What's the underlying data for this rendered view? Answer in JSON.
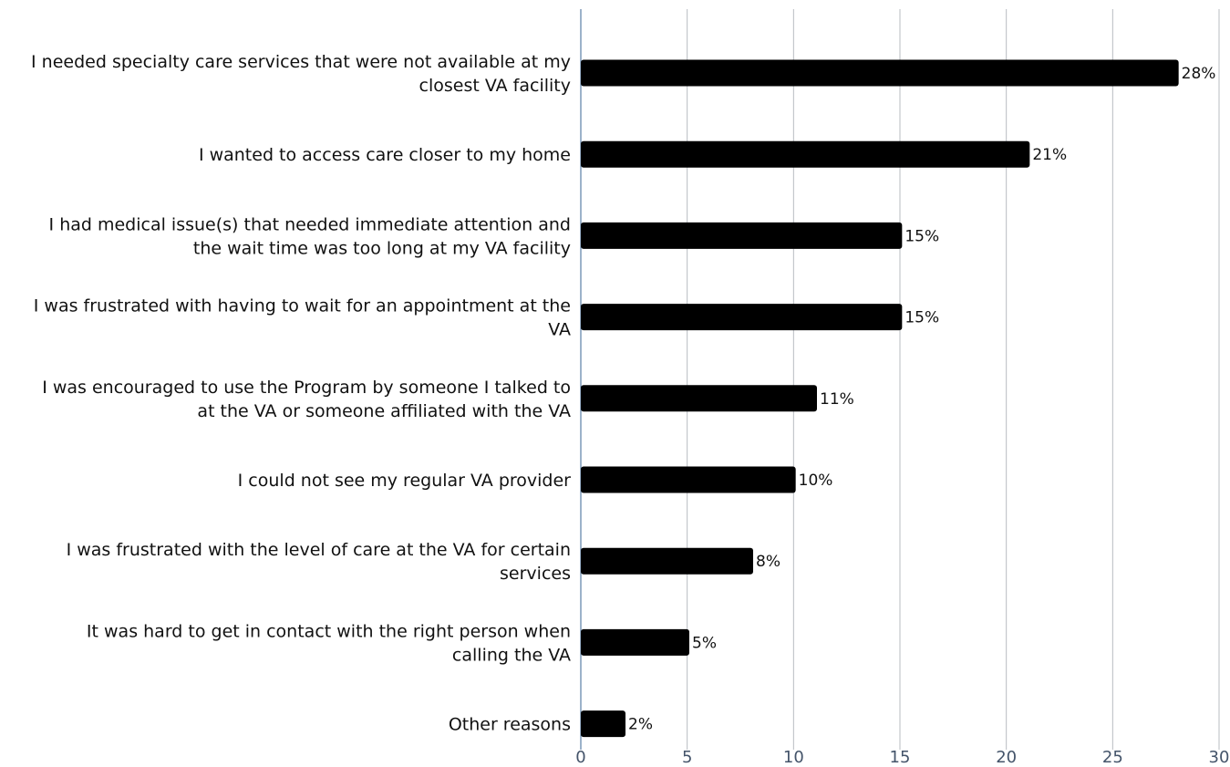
{
  "chart_data": {
    "type": "bar",
    "orientation": "horizontal",
    "categories": [
      [
        "I needed specialty care services that were not available at my",
        "closest VA facility"
      ],
      [
        "I wanted to access care closer to my home"
      ],
      [
        "I had medical issue(s) that needed immediate attention and",
        "the wait time was too long at my VA facility"
      ],
      [
        "I was frustrated with having to wait for an appointment at the",
        "VA"
      ],
      [
        "I was encouraged to use the Program by someone I talked to",
        "at the VA or someone affiliated with the VA"
      ],
      [
        "I could not see my regular VA provider"
      ],
      [
        "I was frustrated with the level of care at the VA for certain",
        "services"
      ],
      [
        "It was hard to get in contact with the right person when",
        "calling the VA"
      ],
      [
        "Other reasons"
      ]
    ],
    "values": [
      28.1,
      21.1,
      15.1,
      15.1,
      11.1,
      10.1,
      8.1,
      5.1,
      2.1
    ],
    "data_labels": [
      "28%",
      "21%",
      "15%",
      "15%",
      "11%",
      "10%",
      "8%",
      "5%",
      "2%"
    ],
    "xlim": [
      0,
      30
    ],
    "xticks": [
      0,
      5,
      10,
      15,
      20,
      25,
      30
    ],
    "xtick_labels": [
      "0",
      "5",
      "10",
      "15",
      "20",
      "25",
      "30"
    ],
    "title": "",
    "xlabel": "",
    "ylabel": "",
    "grid": "vertical",
    "legend": "none",
    "colors": {
      "bar": "#000000",
      "grid": "#b8bcc2",
      "axis": "#5b7fa6",
      "tick_text": "#44546a"
    }
  }
}
